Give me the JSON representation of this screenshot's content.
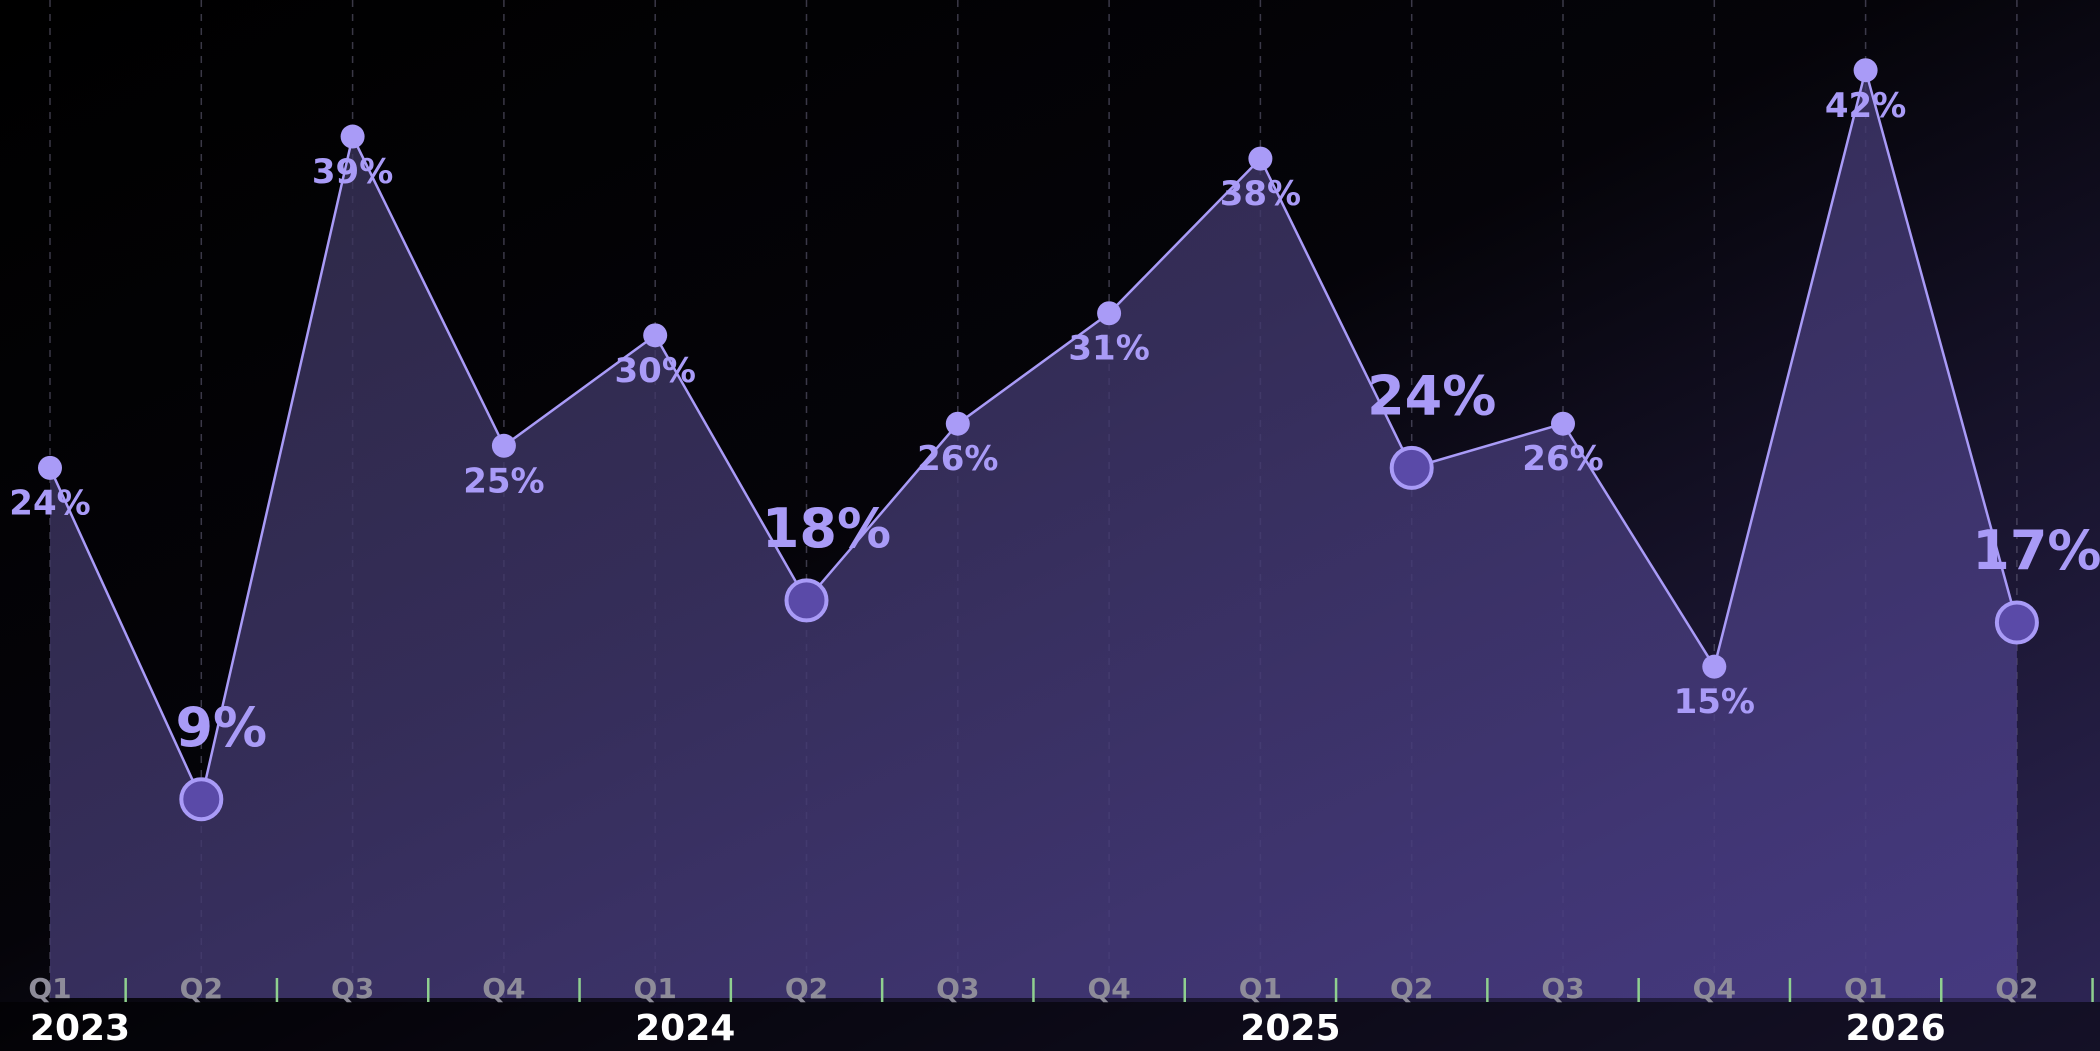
{
  "chart_data": {
    "type": "line",
    "categories": [
      "Q1",
      "Q2",
      "Q3",
      "Q4",
      "Q1",
      "Q2",
      "Q3",
      "Q4",
      "Q1",
      "Q2",
      "Q3",
      "Q4",
      "Q1",
      "Q2"
    ],
    "years": [
      "2023",
      "2024",
      "2025",
      "2026"
    ],
    "series": [
      {
        "color": "#a99bf7",
        "values": [
          24,
          9,
          39,
          25,
          30,
          18,
          26,
          31,
          38,
          24,
          26,
          15,
          42,
          17
        ],
        "value_labels": [
          "24%",
          "9%",
          "39%",
          "25%",
          "30%",
          "18%",
          "26%",
          "31%",
          "38%",
          "24%",
          "26%",
          "15%",
          "42%",
          "17%"
        ]
      }
    ],
    "highlighted": [
      1,
      5,
      9,
      13
    ],
    "ylim": [
      0,
      45
    ],
    "grid": true
  }
}
